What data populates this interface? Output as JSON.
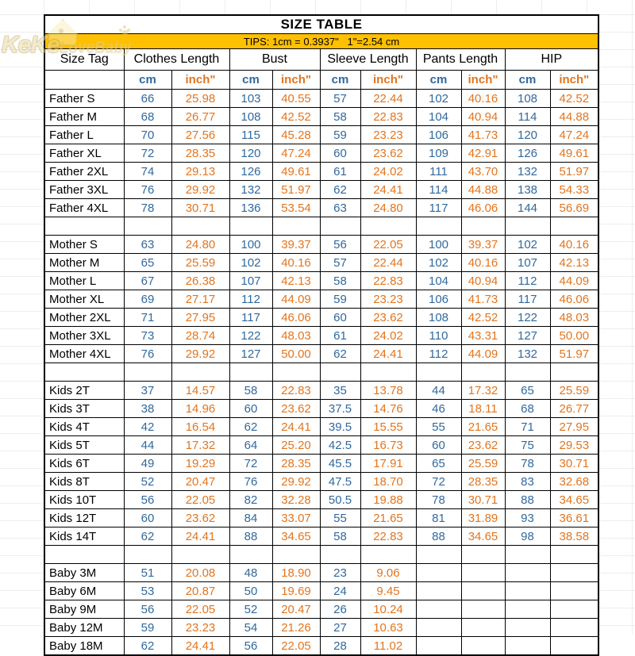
{
  "title": "SIZE TABLE",
  "tips": "TIPS: 1cm = 0.3937\"   1\"=2.54 cm",
  "watermark": {
    "keke": "KeKe",
    "lovebaby": "LoveBaby"
  },
  "colors": {
    "tips_background": "#FFC000",
    "cm_text": "#31699C",
    "inch_text": "#E2751E",
    "border": "#000000"
  },
  "columns": {
    "size_tag": "Size Tag",
    "groups": [
      {
        "label": "Clothes Length"
      },
      {
        "label": "Bust"
      },
      {
        "label": "Sleeve Length"
      },
      {
        "label": "Pants Length"
      },
      {
        "label": "HIP"
      }
    ],
    "unit_cm": "cm",
    "unit_inch": "inch\""
  },
  "sections": [
    {
      "name": "father",
      "rows": [
        {
          "tag": "Father S",
          "values": [
            "66",
            "25.98",
            "103",
            "40.55",
            "57",
            "22.44",
            "102",
            "40.16",
            "108",
            "42.52"
          ]
        },
        {
          "tag": "Father M",
          "values": [
            "68",
            "26.77",
            "108",
            "42.52",
            "58",
            "22.83",
            "104",
            "40.94",
            "114",
            "44.88"
          ]
        },
        {
          "tag": "Father L",
          "values": [
            "70",
            "27.56",
            "115",
            "45.28",
            "59",
            "23.23",
            "106",
            "41.73",
            "120",
            "47.24"
          ]
        },
        {
          "tag": "Father XL",
          "values": [
            "72",
            "28.35",
            "120",
            "47.24",
            "60",
            "23.62",
            "109",
            "42.91",
            "126",
            "49.61"
          ]
        },
        {
          "tag": "Father 2XL",
          "values": [
            "74",
            "29.13",
            "126",
            "49.61",
            "61",
            "24.02",
            "111",
            "43.70",
            "132",
            "51.97"
          ]
        },
        {
          "tag": "Father 3XL",
          "values": [
            "76",
            "29.92",
            "132",
            "51.97",
            "62",
            "24.41",
            "114",
            "44.88",
            "138",
            "54.33"
          ]
        },
        {
          "tag": "Father 4XL",
          "values": [
            "78",
            "30.71",
            "136",
            "53.54",
            "63",
            "24.80",
            "117",
            "46.06",
            "144",
            "56.69"
          ]
        }
      ]
    },
    {
      "name": "mother",
      "rows": [
        {
          "tag": "Mother S",
          "values": [
            "63",
            "24.80",
            "100",
            "39.37",
            "56",
            "22.05",
            "100",
            "39.37",
            "102",
            "40.16"
          ]
        },
        {
          "tag": "Mother M",
          "values": [
            "65",
            "25.59",
            "102",
            "40.16",
            "57",
            "22.44",
            "102",
            "40.16",
            "107",
            "42.13"
          ]
        },
        {
          "tag": "Mother L",
          "values": [
            "67",
            "26.38",
            "107",
            "42.13",
            "58",
            "22.83",
            "104",
            "40.94",
            "112",
            "44.09"
          ]
        },
        {
          "tag": "Mother XL",
          "values": [
            "69",
            "27.17",
            "112",
            "44.09",
            "59",
            "23.23",
            "106",
            "41.73",
            "117",
            "46.06"
          ]
        },
        {
          "tag": "Mother 2XL",
          "values": [
            "71",
            "27.95",
            "117",
            "46.06",
            "60",
            "23.62",
            "108",
            "42.52",
            "122",
            "48.03"
          ]
        },
        {
          "tag": "Mother 3XL",
          "values": [
            "73",
            "28.74",
            "122",
            "48.03",
            "61",
            "24.02",
            "110",
            "43.31",
            "127",
            "50.00"
          ]
        },
        {
          "tag": "Mother 4XL",
          "values": [
            "76",
            "29.92",
            "127",
            "50.00",
            "62",
            "24.41",
            "112",
            "44.09",
            "132",
            "51.97"
          ]
        }
      ]
    },
    {
      "name": "kids",
      "rows": [
        {
          "tag": "Kids 2T",
          "values": [
            "37",
            "14.57",
            "58",
            "22.83",
            "35",
            "13.78",
            "44",
            "17.32",
            "65",
            "25.59"
          ]
        },
        {
          "tag": "Kids 3T",
          "values": [
            "38",
            "14.96",
            "60",
            "23.62",
            "37.5",
            "14.76",
            "46",
            "18.11",
            "68",
            "26.77"
          ]
        },
        {
          "tag": "Kids 4T",
          "values": [
            "42",
            "16.54",
            "62",
            "24.41",
            "39.5",
            "15.55",
            "55",
            "21.65",
            "71",
            "27.95"
          ]
        },
        {
          "tag": "Kids 5T",
          "values": [
            "44",
            "17.32",
            "64",
            "25.20",
            "42.5",
            "16.73",
            "60",
            "23.62",
            "75",
            "29.53"
          ]
        },
        {
          "tag": "Kids 6T",
          "values": [
            "49",
            "19.29",
            "72",
            "28.35",
            "45.5",
            "17.91",
            "65",
            "25.59",
            "78",
            "30.71"
          ]
        },
        {
          "tag": "Kids 8T",
          "values": [
            "52",
            "20.47",
            "76",
            "29.92",
            "47.5",
            "18.70",
            "72",
            "28.35",
            "83",
            "32.68"
          ]
        },
        {
          "tag": "Kids 10T",
          "values": [
            "56",
            "22.05",
            "82",
            "32.28",
            "50.5",
            "19.88",
            "78",
            "30.71",
            "88",
            "34.65"
          ]
        },
        {
          "tag": "Kids 12T",
          "values": [
            "60",
            "23.62",
            "84",
            "33.07",
            "55",
            "21.65",
            "81",
            "31.89",
            "93",
            "36.61"
          ]
        },
        {
          "tag": "Kids 14T",
          "values": [
            "62",
            "24.41",
            "88",
            "34.65",
            "58",
            "22.83",
            "88",
            "34.65",
            "98",
            "38.58"
          ]
        }
      ]
    },
    {
      "name": "baby",
      "rows": [
        {
          "tag": "Baby 3M",
          "values": [
            "51",
            "20.08",
            "48",
            "18.90",
            "23",
            "9.06",
            "",
            "",
            "",
            ""
          ]
        },
        {
          "tag": "Baby 6M",
          "values": [
            "53",
            "20.87",
            "50",
            "19.69",
            "24",
            "9.45",
            "",
            "",
            "",
            ""
          ]
        },
        {
          "tag": "Baby 9M",
          "values": [
            "56",
            "22.05",
            "52",
            "20.47",
            "26",
            "10.24",
            "",
            "",
            "",
            ""
          ]
        },
        {
          "tag": "Baby 12M",
          "values": [
            "59",
            "23.23",
            "54",
            "21.26",
            "27",
            "10.63",
            "",
            "",
            "",
            ""
          ]
        },
        {
          "tag": "Baby 18M",
          "values": [
            "62",
            "24.41",
            "56",
            "22.05",
            "28",
            "11.02",
            "",
            "",
            "",
            ""
          ]
        }
      ]
    }
  ]
}
